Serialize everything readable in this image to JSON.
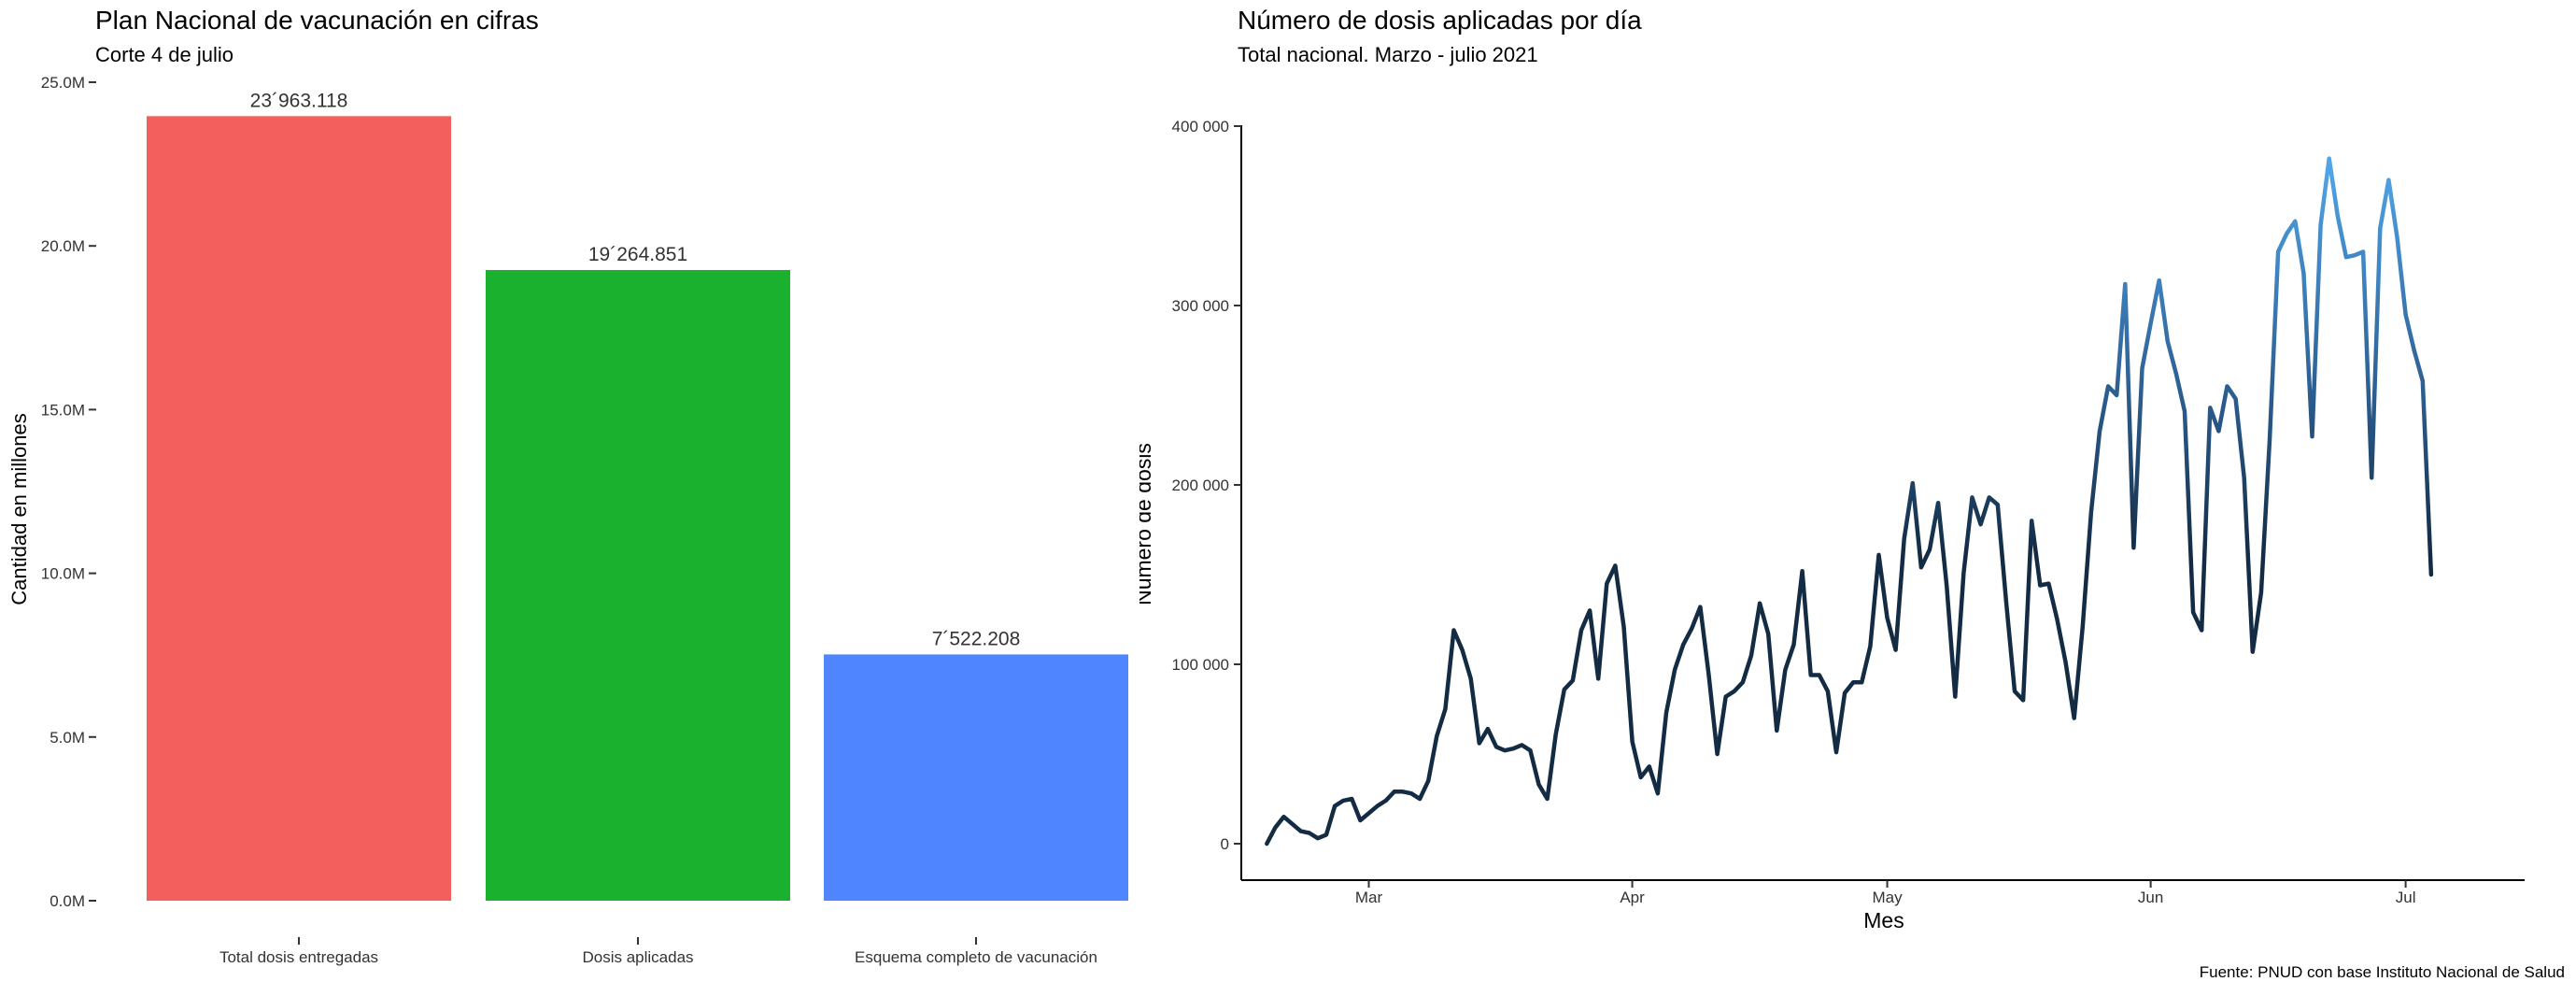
{
  "caption": "Fuente: PNUD con base Instituto Nacional de Salud",
  "left_chart": {
    "title": "Plan Nacional de vacunación en cifras",
    "subtitle": "Corte 4 de julio",
    "ylabel": "Cantidad en millones",
    "y_ticks": [
      "0.0M",
      "5.0M",
      "10.0M",
      "15.0M",
      "20.0M",
      "25.0M"
    ]
  },
  "right_chart": {
    "title": "Número de dosis aplicadas por día",
    "subtitle": "Total nacional. Marzo - julio 2021",
    "xlabel": "Mes",
    "ylabel": "Número de dosis",
    "y_ticks": [
      "0",
      "100 000",
      "200 000",
      "300 000",
      "400 000"
    ],
    "x_ticks": [
      "Mar",
      "Apr",
      "May",
      "Jun",
      "Jul"
    ]
  },
  "chart_data": [
    {
      "type": "bar",
      "title": "Plan Nacional de vacunación en cifras",
      "subtitle": "Corte 4 de julio",
      "xlabel": "",
      "ylabel": "Cantidad en millones",
      "ylim": [
        0,
        25
      ],
      "y_unit": "millions",
      "grid": false,
      "legend": "none",
      "categories": [
        "Total dosis entregadas",
        "Dosis aplicadas",
        "Esquema completo de vacunación"
      ],
      "values": [
        23.963118,
        19.264851,
        7.522208
      ],
      "data_labels": [
        "23´963.118",
        "19´264.851",
        "7´522.208"
      ],
      "colors": [
        "#F25F5C",
        "#1AB12E",
        "#4F86FF"
      ]
    },
    {
      "type": "line",
      "title": "Número de dosis aplicadas por día",
      "subtitle": "Total nacional. Marzo - julio 2021",
      "xlabel": "Mes",
      "ylabel": "Número de dosis",
      "ylim": [
        0,
        400000
      ],
      "xlim": [
        "2021-02-14",
        "2021-07-15"
      ],
      "grid": false,
      "legend": "none",
      "color_gradient": [
        "#132B43",
        "#56B1F7"
      ],
      "series": [
        {
          "start_date": "2021-02-17",
          "values": [
            0,
            9000,
            15000,
            11000,
            7000,
            6000,
            3000,
            5000,
            21000,
            24000,
            25000,
            13000,
            17000,
            21000,
            24000,
            29000,
            29000,
            28000,
            25000,
            35000,
            60000,
            75000,
            119000,
            108000,
            92000,
            56000,
            64000,
            54000,
            52000,
            53000,
            55000,
            52000,
            33000,
            25000,
            61000,
            86000,
            91000,
            119000,
            130000,
            92000,
            145000,
            155000,
            121000,
            57000,
            37000,
            43000,
            28000,
            73000,
            97000,
            111000,
            120000,
            132000,
            94000,
            50000,
            82000,
            85000,
            90000,
            105000,
            134000,
            117000,
            63000,
            97000,
            111000,
            152000,
            94000,
            94000,
            85000,
            51000,
            84000,
            90000,
            90000,
            110000,
            161000,
            126000,
            108000,
            170000,
            201000,
            154000,
            164000,
            190000,
            144000,
            82000,
            151000,
            193000,
            178000,
            193000,
            189000,
            135000,
            85000,
            80000,
            180000,
            144000,
            145000,
            125000,
            101000,
            70000,
            121000,
            185000,
            230000,
            255000,
            250000,
            312000,
            165000,
            265000,
            290000,
            314000,
            280000,
            262000,
            241000,
            129000,
            119000,
            243000,
            230000,
            255000,
            248000,
            204000,
            107000,
            140000,
            225000,
            330000,
            340000,
            347000,
            318000,
            227000,
            345000,
            382000,
            350000,
            327000,
            328000,
            330000,
            204000,
            343000,
            370000,
            338000,
            295000,
            275000,
            258000,
            150000
          ]
        }
      ]
    }
  ]
}
